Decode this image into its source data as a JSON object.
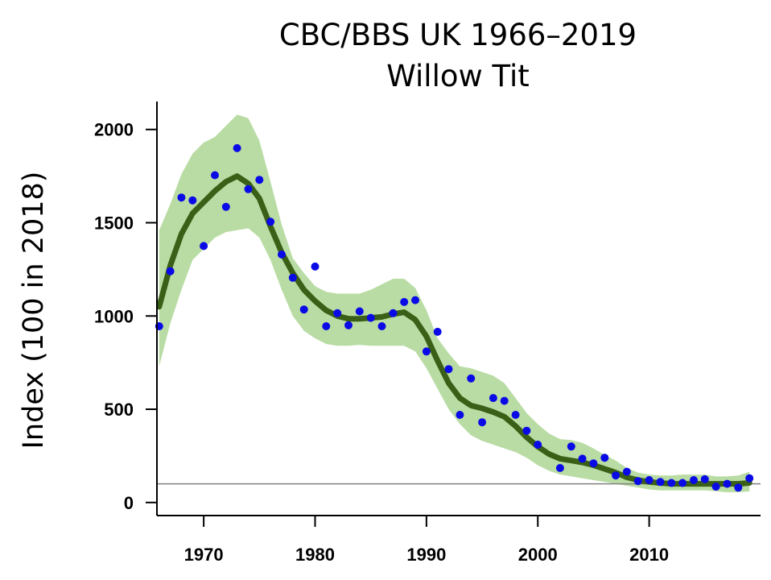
{
  "chart_data": {
    "type": "line",
    "title": "CBC/BBS UK 1966–2019",
    "subtitle": "Willow Tit",
    "xlabel": "",
    "ylabel": "Index (100 in 2018)",
    "xlim": [
      1965.8,
      2020
    ],
    "ylim": [
      -70,
      2150
    ],
    "x_ticks": [
      1970,
      1980,
      1990,
      2000,
      2010
    ],
    "y_ticks": [
      0,
      500,
      1000,
      1500,
      2000
    ],
    "reference_line": 100,
    "colors": {
      "band": "#b9dca4",
      "trend": "#3a5f16",
      "points": "#0a0ae6",
      "axis": "#000000",
      "reference": "#808080"
    },
    "series": [
      {
        "kind": "confidence_band",
        "x": [
          1966,
          1967,
          1968,
          1969,
          1970,
          1971,
          1972,
          1973,
          1974,
          1975,
          1976,
          1977,
          1978,
          1979,
          1980,
          1981,
          1982,
          1983,
          1984,
          1985,
          1986,
          1987,
          1988,
          1989,
          1990,
          1991,
          1992,
          1993,
          1994,
          1995,
          1996,
          1997,
          1998,
          1999,
          2000,
          2001,
          2002,
          2003,
          2004,
          2005,
          2006,
          2007,
          2008,
          2009,
          2010,
          2011,
          2012,
          2013,
          2014,
          2015,
          2016,
          2017,
          2018,
          2019
        ],
        "upper": [
          1460,
          1600,
          1760,
          1870,
          1930,
          1960,
          2020,
          2080,
          2060,
          1940,
          1720,
          1490,
          1310,
          1230,
          1160,
          1130,
          1120,
          1120,
          1120,
          1140,
          1170,
          1200,
          1200,
          1150,
          1030,
          880,
          800,
          730,
          720,
          700,
          680,
          640,
          560,
          480,
          420,
          370,
          340,
          335,
          320,
          290,
          255,
          225,
          185,
          160,
          150,
          145,
          145,
          150,
          150,
          150,
          140,
          140,
          145,
          165
        ],
        "lower": [
          730,
          960,
          1140,
          1300,
          1360,
          1420,
          1450,
          1460,
          1470,
          1420,
          1300,
          1140,
          1000,
          920,
          880,
          850,
          840,
          840,
          845,
          840,
          840,
          840,
          840,
          810,
          720,
          610,
          500,
          420,
          360,
          330,
          310,
          290,
          270,
          240,
          200,
          170,
          150,
          140,
          130,
          120,
          110,
          100,
          90,
          80,
          70,
          65,
          65,
          65,
          65,
          65,
          60,
          55,
          55,
          60
        ]
      },
      {
        "kind": "trend",
        "x": [
          1966,
          1967,
          1968,
          1969,
          1970,
          1971,
          1972,
          1973,
          1974,
          1975,
          1976,
          1977,
          1978,
          1979,
          1980,
          1981,
          1982,
          1983,
          1984,
          1985,
          1986,
          1987,
          1988,
          1989,
          1990,
          1991,
          1992,
          1993,
          1994,
          1995,
          1996,
          1997,
          1998,
          1999,
          2000,
          2001,
          2002,
          2003,
          2004,
          2005,
          2006,
          2007,
          2008,
          2009,
          2010,
          2011,
          2012,
          2013,
          2014,
          2015,
          2016,
          2017,
          2018,
          2019
        ],
        "y": [
          1050,
          1270,
          1440,
          1550,
          1610,
          1670,
          1720,
          1750,
          1710,
          1630,
          1480,
          1340,
          1230,
          1140,
          1080,
          1030,
          1000,
          985,
          985,
          990,
          995,
          1010,
          1020,
          980,
          890,
          760,
          640,
          560,
          520,
          505,
          485,
          460,
          410,
          350,
          300,
          260,
          235,
          225,
          215,
          200,
          180,
          160,
          135,
          120,
          110,
          105,
          100,
          100,
          100,
          100,
          100,
          100,
          100,
          105
        ]
      },
      {
        "kind": "annual_index",
        "x": [
          1966,
          1967,
          1968,
          1969,
          1970,
          1971,
          1972,
          1973,
          1974,
          1975,
          1976,
          1977,
          1978,
          1979,
          1980,
          1981,
          1982,
          1983,
          1984,
          1985,
          1986,
          1987,
          1988,
          1989,
          1990,
          1991,
          1992,
          1993,
          1994,
          1995,
          1996,
          1997,
          1998,
          1999,
          2000,
          2002,
          2003,
          2004,
          2005,
          2006,
          2007,
          2008,
          2009,
          2010,
          2011,
          2012,
          2013,
          2014,
          2015,
          2016,
          2017,
          2018,
          2019
        ],
        "y": [
          945,
          1240,
          1635,
          1620,
          1375,
          1755,
          1585,
          1900,
          1680,
          1730,
          1505,
          1330,
          1205,
          1035,
          1265,
          945,
          1015,
          950,
          1025,
          990,
          945,
          1015,
          1075,
          1085,
          810,
          915,
          715,
          470,
          665,
          430,
          560,
          545,
          470,
          385,
          310,
          185,
          300,
          235,
          210,
          240,
          145,
          165,
          115,
          120,
          110,
          105,
          105,
          120,
          125,
          85,
          100,
          80,
          130
        ]
      }
    ]
  }
}
